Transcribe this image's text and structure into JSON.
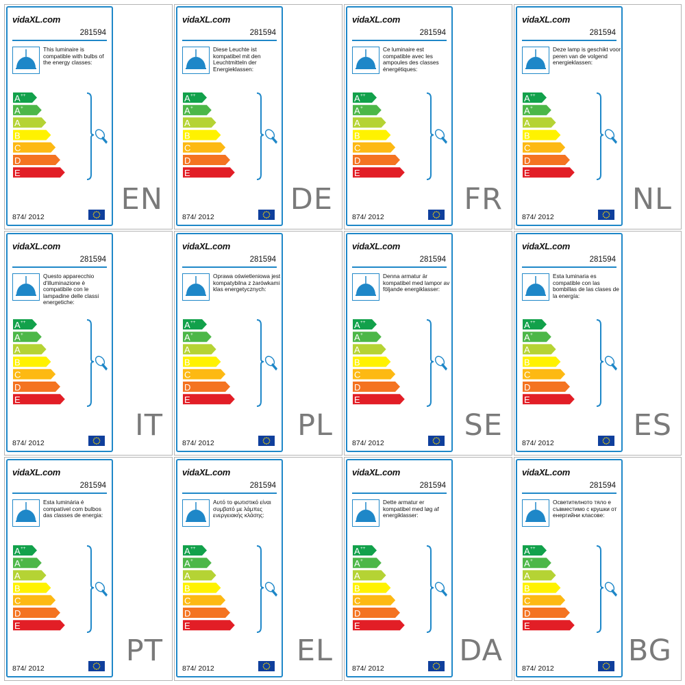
{
  "brand": "vidaXL.com",
  "product_code": "281594",
  "regulation": "874/ 2012",
  "energy_classes": [
    "A++",
    "A+",
    "A",
    "B",
    "C",
    "D",
    "E"
  ],
  "class_colors": [
    "#12a14b",
    "#4cb748",
    "#b5d334",
    "#fff200",
    "#fdb913",
    "#f47321",
    "#e21e26"
  ],
  "accent_color": "#1e87c8",
  "icons": {
    "lamp": "pendant-lamp-icon",
    "bulb": "light-bulb-icon",
    "flag": "eu-flag-icon"
  },
  "labels": [
    {
      "lang": "EN",
      "text": "This luminaire is compatible with bulbs of the energy classes:"
    },
    {
      "lang": "DE",
      "text": "Diese Leuchte ist kompatibel mit den Leuchtmitteln der Energieklassen:"
    },
    {
      "lang": "FR",
      "text": "Ce luminaire est compatible avec les ampoules des classes énergétiques:"
    },
    {
      "lang": "NL",
      "text": "Deze lamp is geschikt voor peren van de volgend energieklassen:"
    },
    {
      "lang": "IT",
      "text": "Questo apparecchio d'illuminazione è compatibile con le lampadine delle classi energetiche:"
    },
    {
      "lang": "PL",
      "text": "Oprawa oświetleniowa jest kompatybilna z żarówkami klas energetycznych:"
    },
    {
      "lang": "SE",
      "text": "Denna armatur är kompatibel med lampor av följande energiklasser:"
    },
    {
      "lang": "ES",
      "text": "Esta luminaria es compatible con las bombillas de las clases de la energía:"
    },
    {
      "lang": "PT",
      "text": "Esta luminária é compatível com bulbos das classes de energia:"
    },
    {
      "lang": "EL",
      "text": "Αυτό το φωτιστικό είναι συμβατό με λάμπες ενεργειακής κλάσης:"
    },
    {
      "lang": "DA",
      "text": "Dette armatur er kompatibel med løg af energiklasser:"
    },
    {
      "lang": "BG",
      "text": "Осветителното тяло е съвместимо с крушки от енергийни класове:"
    }
  ]
}
